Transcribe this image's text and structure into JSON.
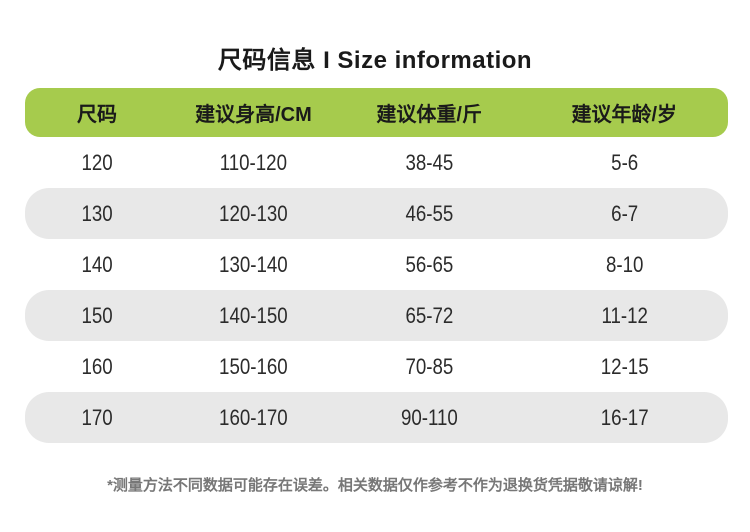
{
  "title": "尺码信息 I Size information",
  "colors": {
    "header_bg": "#a6cb4d",
    "row_alt_bg": "#e8e8e8",
    "title_text": "#1a1a1a",
    "data_text": "#2b2b2b",
    "footnote_text": "#777777"
  },
  "table": {
    "headers": [
      "尺码",
      "建议身高/CM",
      "建议体重/斤",
      "建议年龄/岁"
    ],
    "rows": [
      {
        "cells": [
          "120",
          "110-120",
          "38-45",
          "5-6"
        ]
      },
      {
        "cells": [
          "130",
          "120-130",
          "46-55",
          "6-7"
        ]
      },
      {
        "cells": [
          "140",
          "130-140",
          "56-65",
          "8-10"
        ]
      },
      {
        "cells": [
          "150",
          "140-150",
          "65-72",
          "11-12"
        ]
      },
      {
        "cells": [
          "160",
          "150-160",
          "70-85",
          "12-15"
        ]
      },
      {
        "cells": [
          "170",
          "160-170",
          "90-110",
          "16-17"
        ]
      }
    ]
  },
  "footnote": "*测量方法不同数据可能存在误差。相关数据仅作参考不作为退换货凭据敬请谅解!"
}
